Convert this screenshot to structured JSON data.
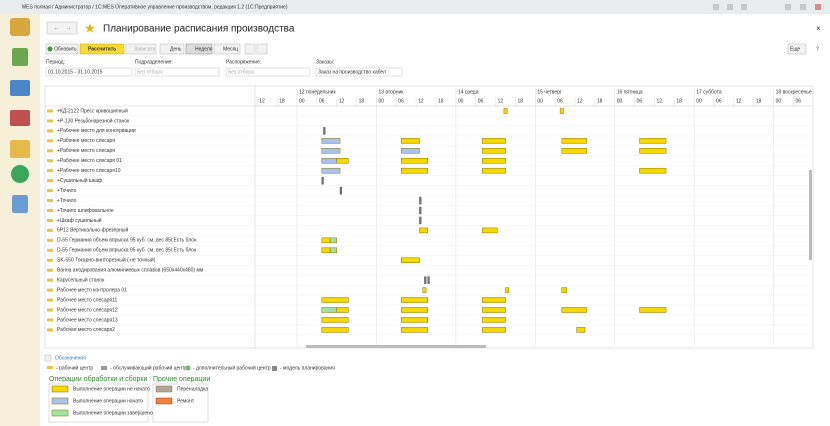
{
  "window_title": "MES полная / Администратор / 1С:MES Оперативное управление производством, редакция 1.2  (1С:Предприятие)",
  "form_title": "Планирование расписания производства",
  "toolbar": {
    "refresh": "Обновить",
    "calculate": "Рассчитать",
    "save": "Записать",
    "day": "День",
    "week": "Неделя",
    "month": "Месяц",
    "more": "Еще"
  },
  "filters": {
    "period_label": "Период:",
    "period_value": "01.10.2015 - 31.10.2015",
    "division_label": "Подразделение:",
    "division_value": "Без отбора",
    "order_label": "Распоряжение:",
    "order_value": "Без отбора",
    "orders_label": "Заказы:",
    "orders_value": "Заказ на производство кабел"
  },
  "timeline": {
    "days": [
      {
        "value": 0,
        "label": "12 понедельник"
      },
      {
        "value": 24,
        "label": "13 вторник"
      },
      {
        "value": 48,
        "label": "14 среда"
      },
      {
        "value": 72,
        "label": "15 четверг"
      },
      {
        "value": 96,
        "label": "16 пятница"
      },
      {
        "value": 120,
        "label": "17 суббота"
      },
      {
        "value": 144,
        "label": "18 воскресенье"
      }
    ],
    "hours": [
      {
        "value": -12,
        "label": "12"
      },
      {
        "value": -6,
        "label": "18"
      },
      {
        "value": 0,
        "label": "00"
      },
      {
        "value": 6,
        "label": "06"
      },
      {
        "value": 12,
        "label": "12"
      },
      {
        "value": 18,
        "label": "18"
      },
      {
        "value": 24,
        "label": "00"
      },
      {
        "value": 30,
        "label": "06"
      },
      {
        "value": 36,
        "label": "12"
      },
      {
        "value": 42,
        "label": "18"
      },
      {
        "value": 48,
        "label": "00"
      },
      {
        "value": 54,
        "label": "06"
      },
      {
        "value": 60,
        "label": "12"
      },
      {
        "value": 66,
        "label": "18"
      },
      {
        "value": 72,
        "label": "00"
      },
      {
        "value": 78,
        "label": "06"
      },
      {
        "value": 84,
        "label": "12"
      },
      {
        "value": 90,
        "label": "18"
      },
      {
        "value": 96,
        "label": "00"
      },
      {
        "value": 102,
        "label": "06"
      },
      {
        "value": 108,
        "label": "12"
      },
      {
        "value": 114,
        "label": "18"
      },
      {
        "value": 120,
        "label": "00"
      },
      {
        "value": 126,
        "label": "06"
      },
      {
        "value": 132,
        "label": "12"
      },
      {
        "value": 138,
        "label": "18"
      },
      {
        "value": 144,
        "label": "00"
      },
      {
        "value": 150,
        "label": "06"
      }
    ]
  },
  "rows": [
    {
      "name": "+КД-2122  Пресс кривошипный",
      "bars": [
        {
          "start": 62.5,
          "end": 63.5,
          "state": "new"
        },
        {
          "start": 79.5,
          "end": 80.5,
          "state": "new"
        }
      ]
    },
    {
      "name": "+Р-130     Резьбонарезной станок",
      "bars": []
    },
    {
      "name": "+Рабочее место для консервации",
      "bars": [
        {
          "start": 8,
          "end": 8.5,
          "state": "mark"
        }
      ]
    },
    {
      "name": "+Рабочее место слесаря",
      "bars": [
        {
          "start": 7.5,
          "end": 13,
          "state": "started"
        },
        {
          "start": 31.5,
          "end": 37,
          "state": "new"
        },
        {
          "start": 56,
          "end": 63,
          "state": "new"
        },
        {
          "start": 80,
          "end": 87.5,
          "state": "new"
        },
        {
          "start": 103.5,
          "end": 111.5,
          "state": "new"
        }
      ]
    },
    {
      "name": "+Рабочее место слесаря",
      "bars": [
        {
          "start": 7.5,
          "end": 13,
          "state": "started"
        },
        {
          "start": 31.5,
          "end": 37,
          "state": "started"
        },
        {
          "start": 56,
          "end": 63,
          "state": "new"
        },
        {
          "start": 80,
          "end": 87.5,
          "state": "new"
        },
        {
          "start": 103.5,
          "end": 111.5,
          "state": "new"
        }
      ]
    },
    {
      "name": "+Рабочее место слесаря 01",
      "bars": [
        {
          "start": 7.5,
          "end": 12,
          "state": "started"
        },
        {
          "start": 12,
          "end": 15.5,
          "state": "new"
        },
        {
          "start": 31.5,
          "end": 39.5,
          "state": "new"
        },
        {
          "start": 56,
          "end": 63,
          "state": "new"
        }
      ]
    },
    {
      "name": "+Рабочее место слесаря10",
      "bars": [
        {
          "start": 7.5,
          "end": 13,
          "state": "started"
        },
        {
          "start": 31.5,
          "end": 39.5,
          "state": "new"
        },
        {
          "start": 56,
          "end": 63,
          "state": "new"
        },
        {
          "start": 103.5,
          "end": 111.5,
          "state": "new"
        }
      ]
    },
    {
      "name": "+Сушильный шкаф",
      "bars": [
        {
          "start": 7.5,
          "end": 8,
          "state": "mark"
        }
      ]
    },
    {
      "name": "+Точило",
      "bars": [
        {
          "start": 13,
          "end": 13.5,
          "state": "mark"
        }
      ]
    },
    {
      "name": "+Точило",
      "bars": [
        {
          "start": 37,
          "end": 37.5,
          "state": "mark"
        }
      ]
    },
    {
      "name": "+Точило шлифовальное",
      "bars": [
        {
          "start": 37,
          "end": 37.5,
          "state": "mark"
        }
      ]
    },
    {
      "name": "+Шкаф сушильный",
      "bars": [
        {
          "start": 37,
          "end": 37.5,
          "state": "mark"
        }
      ]
    },
    {
      "name": "6Р12    Вертикально-фрезерный",
      "bars": [
        {
          "start": 37,
          "end": 39.5,
          "state": "new"
        },
        {
          "start": 56,
          "end": 60.5,
          "state": "new"
        }
      ]
    },
    {
      "name": "D-55 Германия объем впрыска 95 куб. см. вес 85г.Есть блок",
      "bars": [
        {
          "start": 7.5,
          "end": 10,
          "state": "new"
        },
        {
          "start": 10,
          "end": 12,
          "state": "done"
        }
      ]
    },
    {
      "name": "D-55 Германия объем впрыска 95 куб. см. вес 85г.Есть блок",
      "bars": [
        {
          "start": 7.5,
          "end": 10,
          "state": "new"
        },
        {
          "start": 10,
          "end": 12,
          "state": "done"
        }
      ]
    },
    {
      "name": "SK-550 Токарно-винторезный ( не точный)",
      "bars": [
        {
          "start": 31.5,
          "end": 37,
          "state": "new"
        }
      ]
    },
    {
      "name": "Ванна анодирования алюминиевых сплавов (650х440х480) мм",
      "bars": []
    },
    {
      "name": "Карусельный станок",
      "bars": [
        {
          "start": 38.5,
          "end": 39,
          "state": "mark"
        },
        {
          "start": 39.5,
          "end": 40,
          "state": "mark"
        }
      ]
    },
    {
      "name": "Рабочее место контролера 01",
      "bars": [
        {
          "start": 38,
          "end": 39,
          "state": "new"
        },
        {
          "start": 63,
          "end": 64,
          "state": "new"
        },
        {
          "start": 80,
          "end": 81.5,
          "state": "new"
        }
      ]
    },
    {
      "name": "Рабочее место слесаря11",
      "bars": [
        {
          "start": 7.5,
          "end": 15.5,
          "state": "new"
        },
        {
          "start": 31.5,
          "end": 39.5,
          "state": "new"
        },
        {
          "start": 56,
          "end": 63,
          "state": "new"
        }
      ]
    },
    {
      "name": "Рабочее место слесаря12",
      "bars": [
        {
          "start": 7.5,
          "end": 12,
          "state": "done"
        },
        {
          "start": 12,
          "end": 15.5,
          "state": "new"
        },
        {
          "start": 31.5,
          "end": 39.5,
          "state": "new"
        },
        {
          "start": 56,
          "end": 63,
          "state": "new"
        },
        {
          "start": 80,
          "end": 87.5,
          "state": "new"
        },
        {
          "start": 103.5,
          "end": 111.5,
          "state": "new"
        }
      ]
    },
    {
      "name": "Рабочее место слесаря13",
      "bars": [
        {
          "start": 7.5,
          "end": 15.5,
          "state": "new"
        },
        {
          "start": 31.5,
          "end": 39.5,
          "state": "new"
        },
        {
          "start": 56,
          "end": 63,
          "state": "new"
        }
      ]
    },
    {
      "name": "Рабочее место слесаря2",
      "bars": [
        {
          "start": 7.5,
          "end": 15.5,
          "state": "new"
        },
        {
          "start": 31.5,
          "end": 39.5,
          "state": "new"
        },
        {
          "start": 56,
          "end": 63,
          "state": "new"
        },
        {
          "start": 84.5,
          "end": 87,
          "state": "new"
        }
      ]
    }
  ],
  "legend": {
    "title": "Обозначения",
    "work_center": "- рабочий центр",
    "service_center": "- обслуживающий рабочий центр",
    "extra_center": "- дополнительный рабочий центр",
    "model": "- модель планирования",
    "group1": "Операции обработки и сборки",
    "not_started": "Выполнение операции не начато",
    "started": "Выполнение операции начато",
    "done": "Выполнение операции завершено",
    "group2": "Прочие операции",
    "changeover": "Переналадка",
    "repair": "Ремонт"
  }
}
